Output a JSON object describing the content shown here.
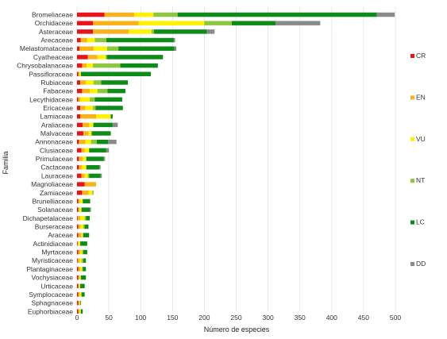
{
  "chart_data": {
    "type": "bar",
    "orientation": "horizontal",
    "stacked": true,
    "xlabel": "Número de especies",
    "ylabel": "Familia",
    "xlim": [
      0,
      500
    ],
    "xticks": [
      0,
      50,
      100,
      150,
      200,
      250,
      300,
      350,
      400,
      450,
      500
    ],
    "grid": "vertical",
    "legend_position": "right",
    "categories": [
      "Bromeliaceae",
      "Orchidaceae",
      "Asteraceae",
      "Arecaceae",
      "Melastomataceae",
      "Cyatheaceae",
      "Chrysobalanaceae",
      "Passifloraceae",
      "Rubiaceae",
      "Fabaceae",
      "Lecythidaceae",
      "Ericaceae",
      "Lamiaceae",
      "Araliaceae",
      "Malvaceae",
      "Annonaceae",
      "Clusiaceae",
      "Primulaceae",
      "Cactaceae",
      "Lauraceae",
      "Magnoliaceae",
      "Zamiaceae",
      "Brunelliaceae",
      "Solanaceae",
      "Dichapetalaceae",
      "Burseraceae",
      "Araceae",
      "Actinidiaceae",
      "Myrtaceae",
      "Myristicaceae",
      "Plantaginaceae",
      "Vochysiaceae",
      "Urticaceae",
      "Symplocaceae",
      "Sphagnaceae",
      "Euphorbiaceae"
    ],
    "series": [
      {
        "name": "CR",
        "color": "#e8141a",
        "values": [
          43,
          25,
          25,
          6,
          4,
          17,
          8,
          2,
          5,
          8,
          2,
          5,
          5,
          9,
          10,
          3,
          7,
          3,
          3,
          7,
          12,
          8,
          2,
          2,
          1,
          2,
          2,
          1,
          2,
          1,
          2,
          2,
          2,
          2,
          2,
          2
        ]
      },
      {
        "name": "EN",
        "color": "#f9b21a",
        "values": [
          47,
          72,
          56,
          10,
          22,
          15,
          7,
          2,
          9,
          12,
          3,
          8,
          25,
          10,
          8,
          10,
          5,
          6,
          5,
          5,
          18,
          10,
          2,
          2,
          4,
          3,
          5,
          1,
          3,
          3,
          3,
          2,
          1,
          2,
          2,
          2
        ]
      },
      {
        "name": "VU",
        "color": "#fef200",
        "values": [
          30,
          103,
          36,
          12,
          21,
          13,
          10,
          2,
          12,
          12,
          15,
          12,
          23,
          6,
          5,
          9,
          7,
          5,
          6,
          5,
          0,
          6,
          5,
          3,
          7,
          5,
          2,
          3,
          3,
          3,
          3,
          2,
          2,
          3,
          1,
          2
        ]
      },
      {
        "name": "NT",
        "color": "#8ec63f",
        "values": [
          38,
          43,
          4,
          18,
          18,
          2,
          43,
          0,
          12,
          16,
          8,
          4,
          0,
          1,
          0,
          9,
          0,
          1,
          1,
          2,
          0,
          2,
          0,
          0,
          2,
          2,
          1,
          0,
          2,
          3,
          1,
          0,
          0,
          0,
          0,
          0
        ]
      },
      {
        "name": "LC",
        "color": "#0e8c1a",
        "values": [
          313,
          69,
          83,
          106,
          88,
          88,
          59,
          110,
          42,
          28,
          43,
          43,
          3,
          30,
          30,
          18,
          27,
          27,
          20,
          18,
          0,
          0,
          11,
          13,
          6,
          6,
          9,
          11,
          6,
          4,
          5,
          8,
          7,
          5,
          1,
          3
        ]
      },
      {
        "name": "DD",
        "color": "#8a8a8a",
        "values": [
          28,
          70,
          12,
          2,
          3,
          0,
          0,
          0,
          0,
          0,
          0,
          0,
          0,
          8,
          0,
          13,
          4,
          2,
          2,
          2,
          0,
          0,
          1,
          2,
          0,
          0,
          0,
          0,
          0,
          0,
          0,
          0,
          0,
          0,
          0,
          0
        ]
      }
    ]
  }
}
